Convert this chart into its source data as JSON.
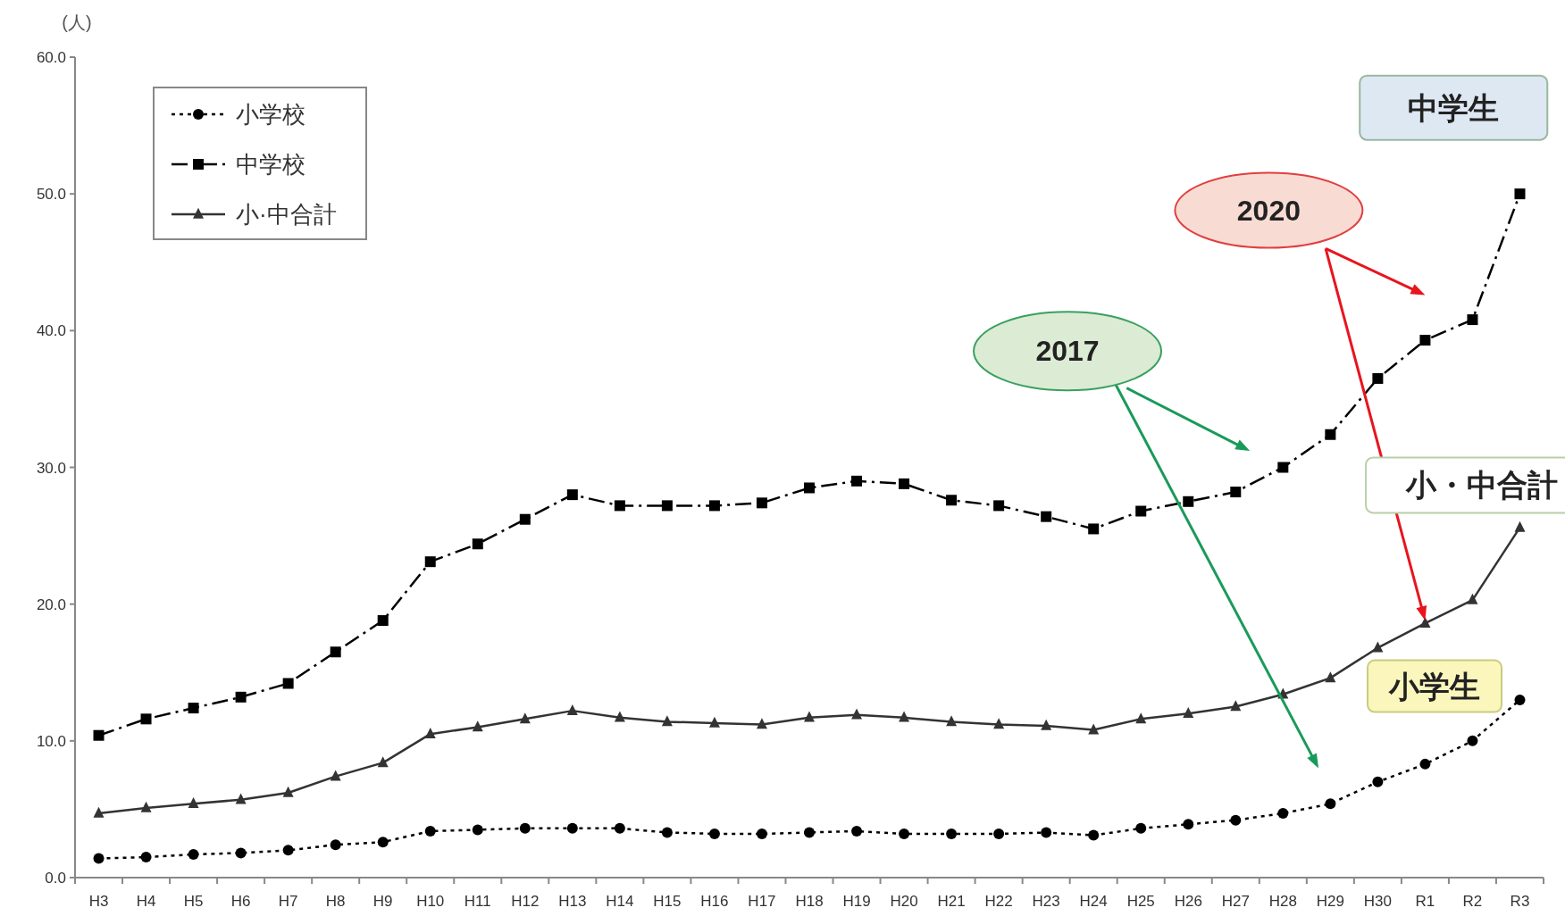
{
  "chart_data": {
    "type": "line",
    "ylabel": "(人)",
    "categories": [
      "H3",
      "H4",
      "H5",
      "H6",
      "H7",
      "H8",
      "H9",
      "H10",
      "H11",
      "H12",
      "H13",
      "H14",
      "H15",
      "H16",
      "H17",
      "H18",
      "H19",
      "H20",
      "H21",
      "H22",
      "H23",
      "H24",
      "H25",
      "H26",
      "H27",
      "H28",
      "H29",
      "H30",
      "R1",
      "R2",
      "R3"
    ],
    "series": [
      {
        "name": "小学校",
        "color": "#000000",
        "marker": "circle",
        "line_style": "dotted",
        "values": [
          1.4,
          1.5,
          1.7,
          1.8,
          2.0,
          2.4,
          2.6,
          3.4,
          3.5,
          3.6,
          3.6,
          3.6,
          3.3,
          3.2,
          3.2,
          3.3,
          3.4,
          3.2,
          3.2,
          3.2,
          3.3,
          3.1,
          3.6,
          3.9,
          4.2,
          4.7,
          5.4,
          7.0,
          8.3,
          10.0,
          13.0
        ]
      },
      {
        "name": "中学校",
        "color": "#000000",
        "marker": "square",
        "line_style": "dashed",
        "values": [
          10.4,
          11.6,
          12.4,
          13.2,
          14.2,
          16.5,
          18.8,
          23.1,
          24.4,
          26.2,
          28.0,
          27.2,
          27.2,
          27.2,
          27.4,
          28.5,
          29.0,
          28.8,
          27.6,
          27.2,
          26.4,
          25.5,
          26.8,
          27.5,
          28.2,
          30.0,
          32.4,
          36.5,
          39.3,
          40.8,
          50.0
        ]
      },
      {
        "name": "小·中合計",
        "color": "#333333",
        "marker": "triangle",
        "line_style": "solid",
        "values": [
          4.7,
          5.1,
          5.4,
          5.7,
          6.2,
          7.4,
          8.4,
          10.5,
          11.0,
          11.6,
          12.2,
          11.7,
          11.4,
          11.3,
          11.2,
          11.7,
          11.9,
          11.7,
          11.4,
          11.2,
          11.1,
          10.8,
          11.6,
          12.0,
          12.5,
          13.4,
          14.6,
          16.8,
          18.6,
          20.3,
          25.6
        ]
      }
    ],
    "ylim": [
      0,
      60
    ],
    "yticks": [
      {
        "value": 0,
        "label": "0.0"
      },
      {
        "value": 10,
        "label": "10.0"
      },
      {
        "value": 20,
        "label": "20.0"
      },
      {
        "value": 30,
        "label": "30.0"
      },
      {
        "value": 40,
        "label": "40.0"
      },
      {
        "value": 50,
        "label": "50.0"
      },
      {
        "value": 60,
        "label": "60.0"
      }
    ],
    "grid": false,
    "legend": "top left",
    "annotations": [
      "中学生",
      "2020",
      "2017",
      "小・中合計",
      "小学生"
    ]
  }
}
